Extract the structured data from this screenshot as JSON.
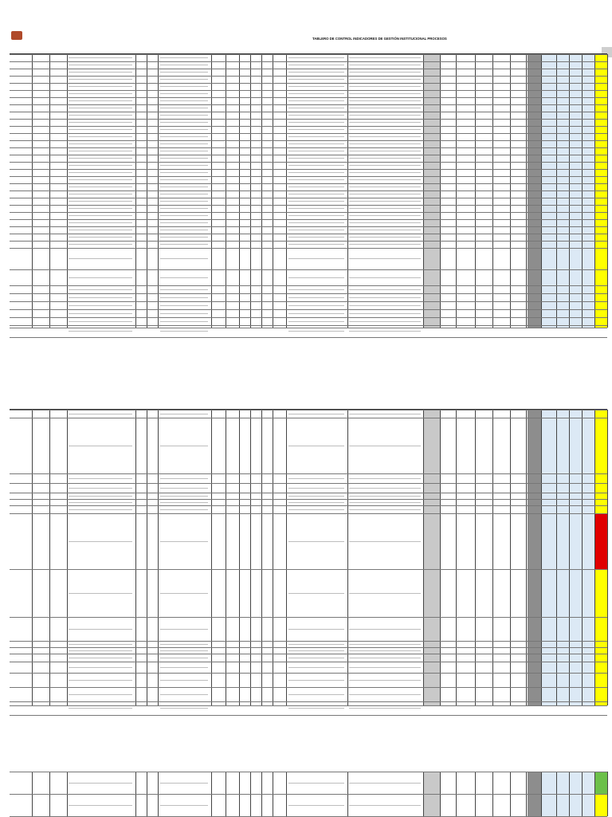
{
  "header": {
    "title": "TABLERO DE CONTROL INDICADORES DE GESTIÓN INSTITUCIONAL PROCESOS",
    "org_lines": [
      "",
      "",
      "",
      ""
    ],
    "sub_lines": [
      "",
      ""
    ]
  },
  "sections": [
    {
      "id": "sec1",
      "row_codes": [
        "",
        "",
        "",
        "",
        "",
        "",
        "",
        "",
        "",
        "",
        "",
        "",
        "",
        "",
        "",
        "",
        "",
        "",
        "",
        "",
        "",
        "",
        "",
        "",
        "",
        "",
        ""
      ]
    },
    {
      "id": "sec2",
      "row_codes": [
        "",
        "",
        "",
        "",
        "",
        "",
        "",
        "",
        "",
        "",
        "",
        "",
        "",
        "",
        "",
        ""
      ]
    },
    {
      "id": "sec3",
      "row_codes": [
        "",
        ""
      ]
    }
  ],
  "colors": {
    "gray": "#8d8d8d",
    "light_blue": "#dce9f5",
    "yellow": "#ffff00",
    "red": "#e00000",
    "green": "#6cc04a"
  }
}
